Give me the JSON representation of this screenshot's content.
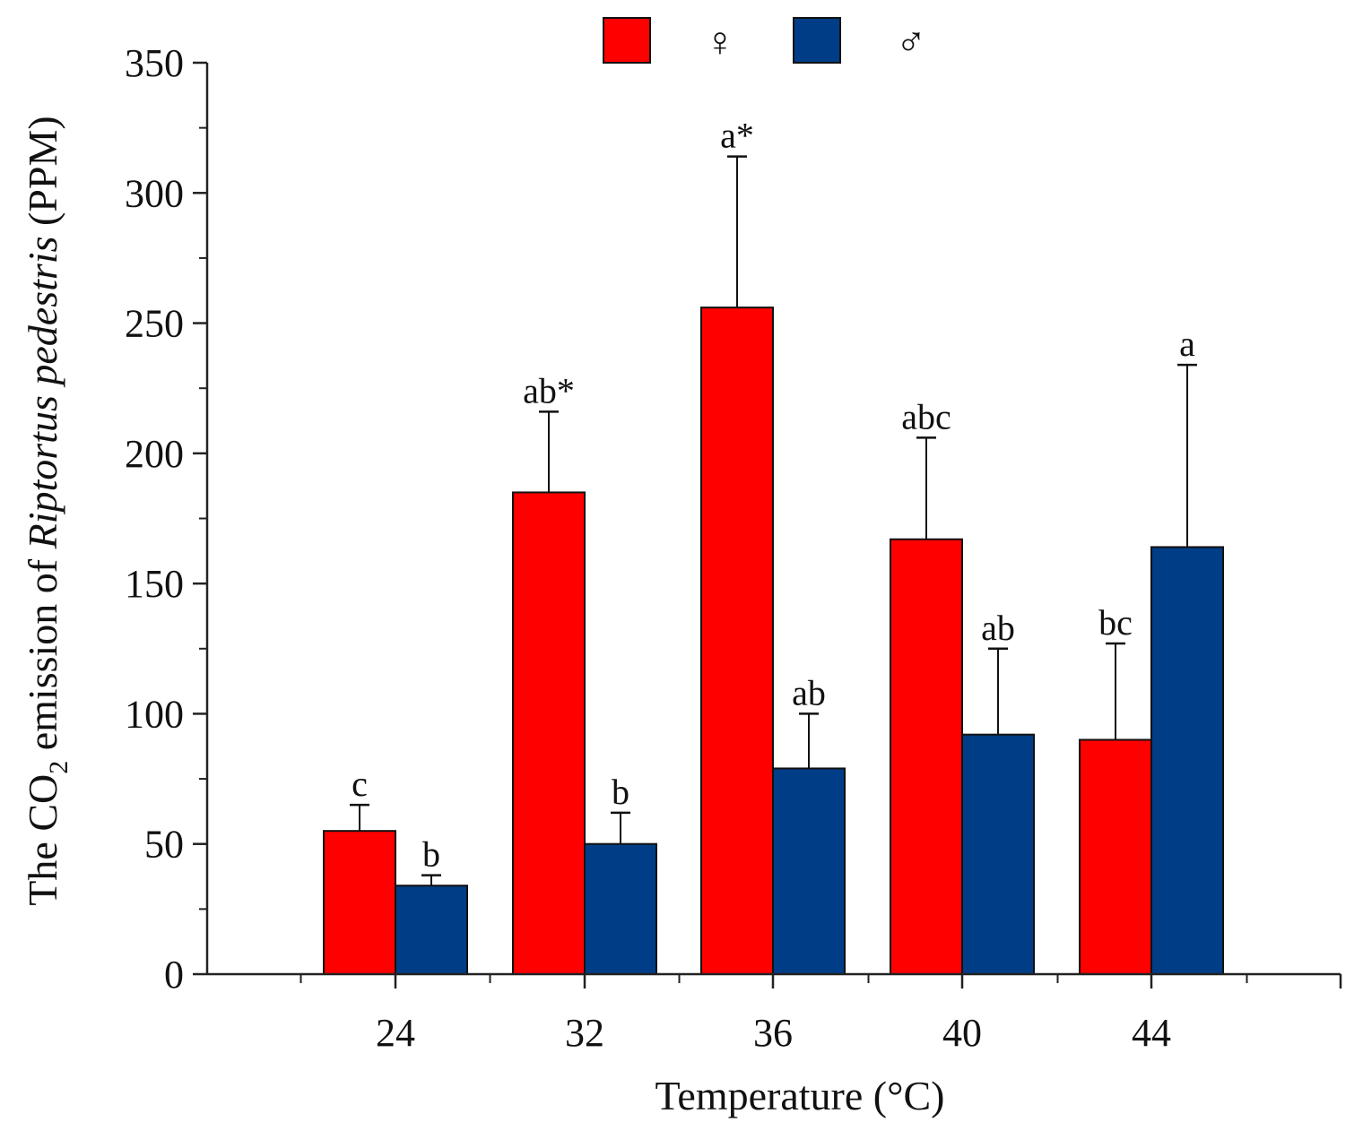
{
  "chart_data": {
    "type": "bar",
    "categories": [
      "24",
      "32",
      "36",
      "40",
      "44"
    ],
    "series": [
      {
        "name": "♀",
        "color": "#ff0000",
        "values": [
          55,
          185,
          256,
          167,
          90
        ],
        "error_upper": [
          65,
          216,
          314,
          206,
          127
        ],
        "labels": [
          "c",
          "ab*",
          "a*",
          "abc",
          "bc"
        ]
      },
      {
        "name": "♂",
        "color": "#003d87",
        "values": [
          34,
          50,
          79,
          92,
          164
        ],
        "error_upper": [
          38,
          62,
          100,
          125,
          234
        ],
        "labels": [
          "b",
          "b",
          "ab",
          "ab",
          "a"
        ]
      }
    ],
    "ylim": [
      0,
      350
    ],
    "yticks": [
      "0",
      "50",
      "100",
      "150",
      "200",
      "250",
      "300",
      "350"
    ],
    "xlabel": "Temperature (°C)",
    "ylabel": {
      "part1": "The CO",
      "subscript": "2",
      "part2": " emission of ",
      "italic": "Riptortus pedestris",
      "part3": " (PPM)"
    },
    "legend_position": "top",
    "grid": false
  }
}
